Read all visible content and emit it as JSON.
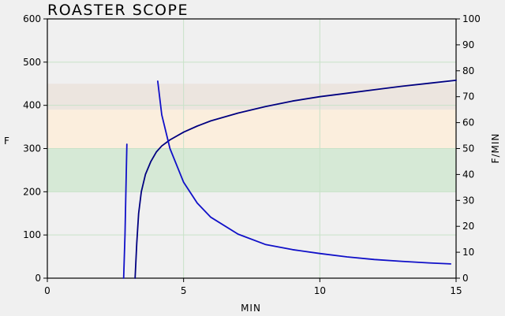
{
  "chart_data": {
    "type": "line",
    "title": "ROASTER SCOPE",
    "xlabel": "MIN",
    "ylabel": "F",
    "y2label": "F/MIN",
    "xlim": [
      0,
      15
    ],
    "ylim": [
      0,
      600
    ],
    "y2lim": [
      0,
      100
    ],
    "xticks": [
      0,
      5,
      10,
      15
    ],
    "yticks": [
      0,
      100,
      200,
      300,
      400,
      500,
      600
    ],
    "y2ticks": [
      0,
      10,
      20,
      30,
      40,
      50,
      60,
      70,
      80,
      90,
      100
    ],
    "grid": true,
    "bands": [
      {
        "y0": 200,
        "y1": 300,
        "color": "#d6e9d6"
      },
      {
        "y0": 300,
        "y1": 390,
        "color": "#fbeedd"
      },
      {
        "y0": 390,
        "y1": 450,
        "color": "#ece5df"
      }
    ],
    "series": [
      {
        "axis": "left",
        "color": "#1010c8",
        "x": [
          2.8,
          2.85,
          2.9,
          2.92
        ],
        "y": [
          0,
          100,
          250,
          310
        ]
      },
      {
        "axis": "left",
        "color": "#000080",
        "x": [
          3.22,
          3.28,
          3.35,
          3.45,
          3.6,
          3.8,
          4.0,
          4.2,
          4.5,
          5.0,
          5.5,
          6.0,
          7.0,
          8.0,
          9.0,
          10.0,
          11.0,
          12.0,
          13.0,
          14.0,
          15.0
        ],
        "y": [
          0,
          80,
          150,
          200,
          240,
          270,
          292,
          306,
          320,
          338,
          352,
          364,
          382,
          397,
          410,
          420,
          428,
          436,
          444,
          451,
          458
        ]
      },
      {
        "axis": "right",
        "color": "#1010c8",
        "x": [
          4.05,
          4.2,
          4.5,
          5.0,
          5.5,
          6.0,
          7.0,
          8.0,
          9.0,
          10.0,
          11.0,
          12.0,
          13.0,
          14.0,
          14.8
        ],
        "y2": [
          76,
          63,
          50,
          37,
          29,
          23.5,
          17,
          13,
          11,
          9.5,
          8.2,
          7.2,
          6.5,
          5.9,
          5.5
        ]
      }
    ]
  }
}
